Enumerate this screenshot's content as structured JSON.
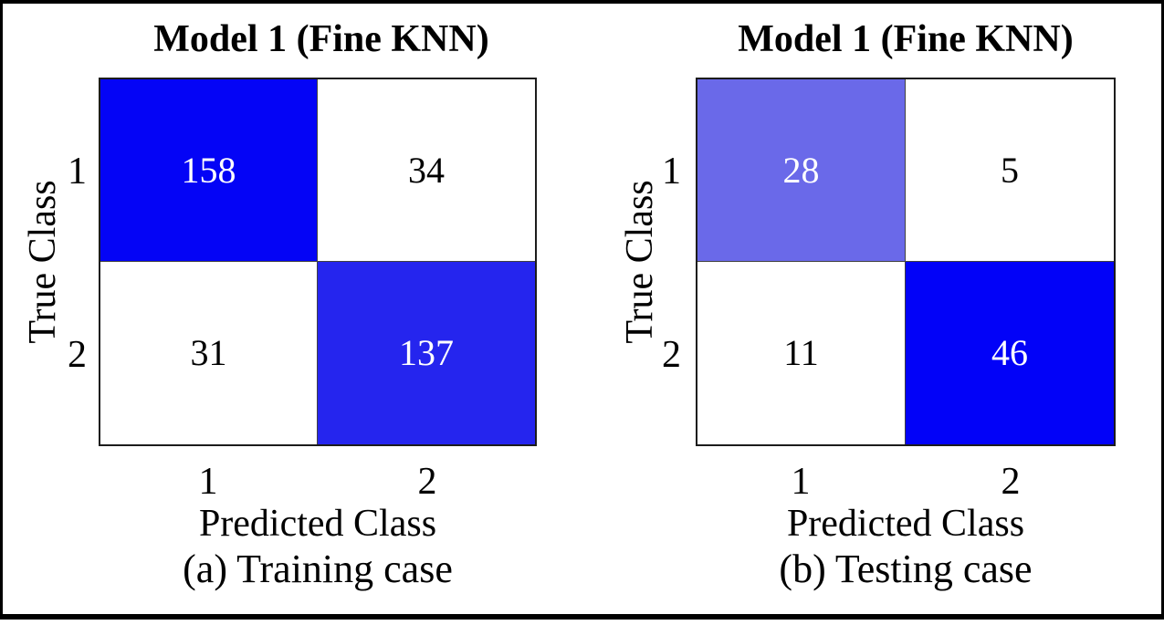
{
  "figure": {
    "panels": [
      {
        "title": "Model 1 (Fine KNN)",
        "ylabel": "True Class",
        "xlabel": "Predicted Class",
        "caption": "(a) Training case",
        "yticks": [
          "1",
          "2"
        ],
        "xticks": [
          "1",
          "2"
        ],
        "cells": [
          {
            "value": "158",
            "bg": "#0404f6",
            "fg": "#ffffff"
          },
          {
            "value": "34",
            "bg": "#ffffff",
            "fg": "#000000"
          },
          {
            "value": "31",
            "bg": "#ffffff",
            "fg": "#000000"
          },
          {
            "value": "137",
            "bg": "#2525ee",
            "fg": "#ffffff"
          }
        ]
      },
      {
        "title": "Model 1 (Fine KNN)",
        "ylabel": "True Class",
        "xlabel": "Predicted Class",
        "caption": "(b) Testing case",
        "yticks": [
          "1",
          "2"
        ],
        "xticks": [
          "1",
          "2"
        ],
        "cells": [
          {
            "value": "28",
            "bg": "#6a69e9",
            "fg": "#ffffff"
          },
          {
            "value": "5",
            "bg": "#ffffff",
            "fg": "#000000"
          },
          {
            "value": "11",
            "bg": "#ffffff",
            "fg": "#000000"
          },
          {
            "value": "46",
            "bg": "#0202f8",
            "fg": "#ffffff"
          }
        ]
      }
    ],
    "colors": {
      "frame_border": "#000000",
      "grid_line": "#404040",
      "diagonal_strong_blue": "#0404f6",
      "diagonal_light_blue": "#6a69e9",
      "off_diagonal": "#ffffff"
    }
  },
  "chart_data": [
    {
      "type": "heatmap",
      "subtype": "confusion-matrix",
      "title": "Model 1 (Fine KNN)",
      "caption": "(a) Training case",
      "xlabel": "Predicted Class",
      "ylabel": "True Class",
      "x_categories": [
        "1",
        "2"
      ],
      "y_categories": [
        "1",
        "2"
      ],
      "values": [
        [
          158,
          34
        ],
        [
          31,
          137
        ]
      ],
      "cell_colors": [
        [
          "#0404f6",
          "#ffffff"
        ],
        [
          "#ffffff",
          "#2525ee"
        ]
      ],
      "legend": "none",
      "grid": "on"
    },
    {
      "type": "heatmap",
      "subtype": "confusion-matrix",
      "title": "Model 1 (Fine KNN)",
      "caption": "(b) Testing case",
      "xlabel": "Predicted Class",
      "ylabel": "True Class",
      "x_categories": [
        "1",
        "2"
      ],
      "y_categories": [
        "1",
        "2"
      ],
      "values": [
        [
          28,
          5
        ],
        [
          11,
          46
        ]
      ],
      "cell_colors": [
        [
          "#6a69e9",
          "#ffffff"
        ],
        [
          "#ffffff",
          "#0202f8"
        ]
      ],
      "legend": "none",
      "grid": "on"
    }
  ]
}
